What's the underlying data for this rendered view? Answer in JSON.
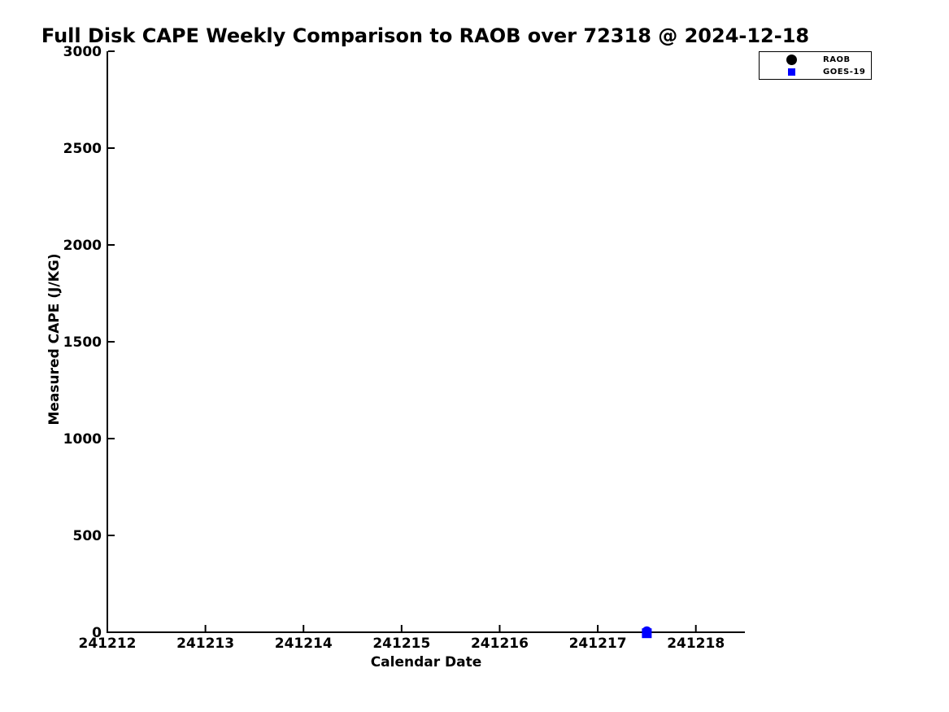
{
  "chart_data": {
    "type": "scatter",
    "title": "Full Disk CAPE Weekly Comparison to RAOB over 72318 @ 2024-12-18",
    "xlabel": "Calendar Date",
    "ylabel": "Measured CAPE (J/KG)",
    "xlim": [
      241212,
      241218.5
    ],
    "ylim": [
      0,
      3000
    ],
    "x_ticks": [
      241212,
      241213,
      241214,
      241215,
      241216,
      241217,
      241218
    ],
    "y_ticks": [
      0,
      500,
      1000,
      1500,
      2000,
      2500,
      3000
    ],
    "grid": false,
    "background_color": "#ffffff",
    "axis_color": "#000000",
    "legend_position": "upper right",
    "legend": [
      {
        "label": "RAOB",
        "marker": "circle",
        "color": "#000000"
      },
      {
        "label": "GOES-19",
        "marker": "square",
        "color": "#0000ff"
      }
    ],
    "series": [
      {
        "name": "RAOB",
        "marker": "circle",
        "marker_size": 12,
        "color": "#000000",
        "points": []
      },
      {
        "name": "GOES-19",
        "marker": "square",
        "marker_size": 12,
        "color": "#0000ff",
        "points": [
          {
            "x": 241217.5,
            "y": 5,
            "marker": "circle"
          },
          {
            "x": 241217.5,
            "y": -5,
            "marker": "square"
          }
        ]
      }
    ]
  }
}
